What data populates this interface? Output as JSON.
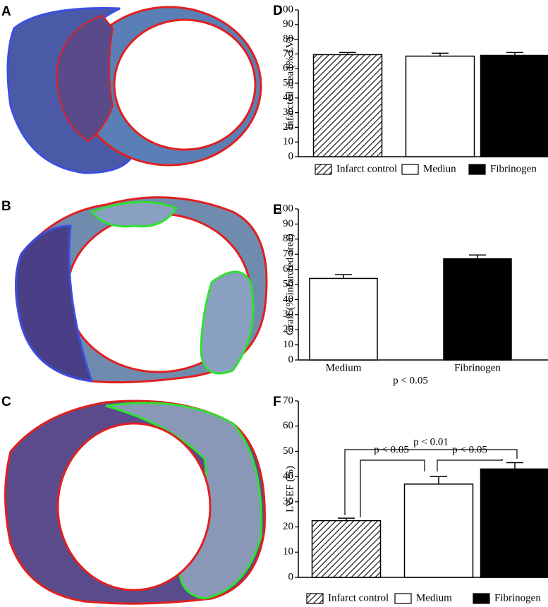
{
  "image_panels": [
    {
      "label": "A"
    },
    {
      "label": "B"
    },
    {
      "label": "C"
    }
  ],
  "chart_data": [
    {
      "type": "bar",
      "panel_label": "D",
      "ylabel": "Infarcted area (% LV)",
      "categories": [
        "Infarct control",
        "Mediun",
        "Fibrinogen"
      ],
      "values": [
        69.5,
        68.5,
        69
      ],
      "errors": [
        1.5,
        2,
        2
      ],
      "fills": [
        "hatch",
        "#ffffff",
        "#000000"
      ],
      "ylim": [
        0,
        100
      ],
      "yticks": [
        0,
        10,
        20,
        30,
        40,
        50,
        60,
        70,
        80,
        90,
        100
      ],
      "legend": "bottom"
    },
    {
      "type": "bar",
      "panel_label": "E",
      "ylabel": "Graft (% infarcted area)",
      "categories": [
        "Medium",
        "Fibrinogen"
      ],
      "values": [
        54,
        67
      ],
      "errors": [
        2.5,
        2.5
      ],
      "fills": [
        "#ffffff",
        "#000000"
      ],
      "ylim": [
        0,
        100
      ],
      "yticks": [
        0,
        10,
        20,
        30,
        40,
        50,
        60,
        70,
        80,
        90,
        100
      ],
      "annotations": [
        "p < 0.05"
      ]
    },
    {
      "type": "bar",
      "panel_label": "F",
      "ylabel": "LV-EF (%)",
      "categories": [
        "Infarct control",
        "Medium",
        "Fibrinogen"
      ],
      "values": [
        22.5,
        37,
        43
      ],
      "errors": [
        1,
        3,
        2.5
      ],
      "fills": [
        "hatch",
        "#ffffff",
        "#000000"
      ],
      "ylim": [
        0,
        70
      ],
      "yticks": [
        0,
        10,
        20,
        30,
        40,
        50,
        60,
        70
      ],
      "legend": "bottom",
      "annotations": [
        "p < 0.01",
        "p < 0.05",
        "p < 0.05"
      ]
    }
  ]
}
